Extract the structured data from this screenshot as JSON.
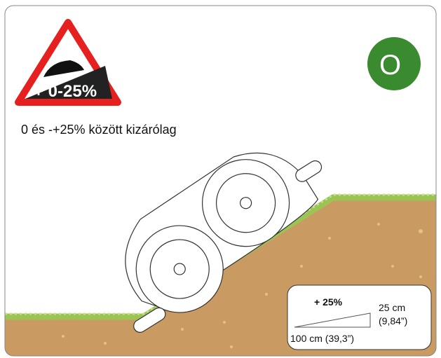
{
  "sign": {
    "label": "+ 0-25%"
  },
  "badge": {
    "label": "O"
  },
  "caption": "0 és -+25% között kizárólag",
  "inset": {
    "slope": "+ 25%",
    "rise": "25 cm",
    "rise_inch": "(9,84”)",
    "run": "100 cm (39,3”)"
  }
}
